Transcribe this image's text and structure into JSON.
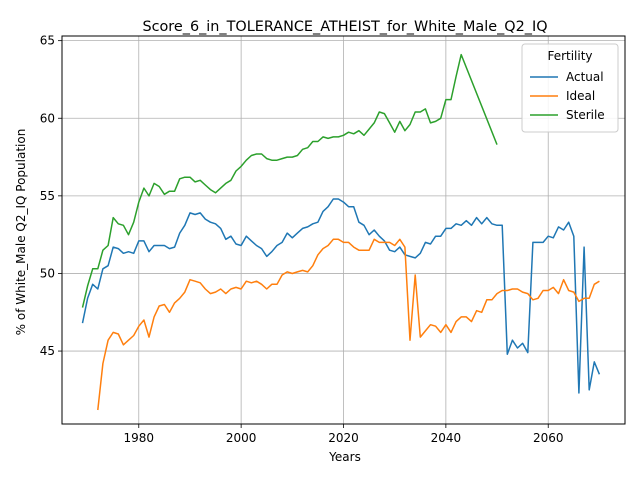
{
  "chart_data": {
    "type": "line",
    "title": "Score_6_in_TOLERANCE_ATHEIST_for_White_Male_Q2_IQ",
    "xlabel": "Years",
    "ylabel": "% of White_Male Q2_IQ Population",
    "xlim": [
      1965,
      2075
    ],
    "ylim": [
      40.3,
      65.3
    ],
    "xticks": [
      1980,
      2000,
      2020,
      2040,
      2060
    ],
    "yticks": [
      45,
      50,
      55,
      60,
      65
    ],
    "grid": true,
    "legend": {
      "title": "Fertility",
      "position": "top-right"
    },
    "series": [
      {
        "name": "Actual",
        "color": "#1f77b4",
        "x": [
          1969,
          1970,
          1971,
          1972,
          1973,
          1974,
          1975,
          1976,
          1977,
          1978,
          1979,
          1980,
          1981,
          1982,
          1983,
          1984,
          1985,
          1986,
          1987,
          1988,
          1989,
          1990,
          1991,
          1992,
          1993,
          1994,
          1995,
          1996,
          1997,
          1998,
          1999,
          2000,
          2001,
          2002,
          2003,
          2004,
          2005,
          2006,
          2007,
          2008,
          2009,
          2010,
          2011,
          2012,
          2013,
          2014,
          2015,
          2016,
          2017,
          2018,
          2019,
          2020,
          2021,
          2022,
          2023,
          2024,
          2025,
          2026,
          2027,
          2028,
          2029,
          2030,
          2031,
          2032,
          2033,
          2034,
          2035,
          2036,
          2037,
          2038,
          2039,
          2040,
          2041,
          2042,
          2043,
          2044,
          2045,
          2046,
          2047,
          2048,
          2049,
          2050,
          2051,
          2052,
          2053,
          2054,
          2055,
          2056,
          2057,
          2058,
          2059,
          2060,
          2061,
          2062,
          2063,
          2064,
          2065,
          2066,
          2067,
          2068,
          2069,
          2070
        ],
        "y": [
          46.8,
          48.4,
          49.3,
          49.0,
          50.3,
          50.5,
          51.7,
          51.6,
          51.3,
          51.4,
          51.3,
          52.1,
          52.1,
          51.4,
          51.8,
          51.8,
          51.8,
          51.6,
          51.7,
          52.6,
          53.1,
          53.9,
          53.8,
          53.9,
          53.5,
          53.3,
          53.2,
          52.9,
          52.2,
          52.4,
          51.9,
          51.8,
          52.4,
          52.1,
          51.8,
          51.6,
          51.1,
          51.4,
          51.8,
          52.0,
          52.6,
          52.3,
          52.6,
          52.9,
          53.0,
          53.2,
          53.3,
          54.0,
          54.3,
          54.8,
          54.8,
          54.6,
          54.3,
          54.3,
          53.3,
          53.1,
          52.5,
          52.8,
          52.4,
          52.1,
          51.5,
          51.4,
          51.7,
          51.2,
          51.1,
          51.0,
          51.3,
          52.0,
          51.9,
          52.4,
          52.4,
          52.9,
          52.9,
          53.2,
          53.1,
          53.4,
          53.1,
          53.6,
          53.2,
          53.6,
          53.2,
          53.1,
          53.1,
          44.8,
          45.7,
          45.2,
          45.5,
          44.9,
          52.0,
          52.0,
          52.0,
          52.4,
          52.3,
          53.0,
          52.8,
          53.3,
          52.4,
          42.3,
          51.7,
          42.5,
          44.3,
          43.5
        ]
      },
      {
        "name": "Ideal",
        "color": "#ff7f0e",
        "x": [
          1972,
          1973,
          1974,
          1975,
          1976,
          1977,
          1978,
          1979,
          1980,
          1981,
          1982,
          1983,
          1984,
          1985,
          1986,
          1987,
          1988,
          1989,
          1990,
          1991,
          1992,
          1993,
          1994,
          1995,
          1996,
          1997,
          1998,
          1999,
          2000,
          2001,
          2002,
          2003,
          2004,
          2005,
          2006,
          2007,
          2008,
          2009,
          2010,
          2011,
          2012,
          2013,
          2014,
          2015,
          2016,
          2017,
          2018,
          2019,
          2020,
          2021,
          2022,
          2023,
          2024,
          2025,
          2026,
          2027,
          2028,
          2029,
          2030,
          2031,
          2032,
          2033,
          2034,
          2035,
          2036,
          2037,
          2038,
          2039,
          2040,
          2041,
          2042,
          2043,
          2044,
          2045,
          2046,
          2047,
          2048,
          2049,
          2050,
          2051,
          2052,
          2053,
          2054,
          2055,
          2056,
          2057,
          2058,
          2059,
          2060,
          2061,
          2062,
          2063,
          2064,
          2065,
          2066,
          2067,
          2068,
          2069,
          2070
        ],
        "y": [
          41.2,
          44.2,
          45.7,
          46.2,
          46.1,
          45.4,
          45.7,
          46.0,
          46.6,
          47.0,
          45.9,
          47.2,
          47.9,
          48.0,
          47.5,
          48.1,
          48.4,
          48.8,
          49.6,
          49.5,
          49.4,
          49.0,
          48.7,
          48.8,
          49.0,
          48.7,
          49.0,
          49.1,
          49.0,
          49.5,
          49.4,
          49.5,
          49.3,
          49.0,
          49.3,
          49.3,
          49.9,
          50.1,
          50.0,
          50.1,
          50.2,
          50.1,
          50.5,
          51.2,
          51.6,
          51.8,
          52.2,
          52.2,
          52.0,
          52.0,
          51.7,
          51.5,
          51.5,
          51.5,
          52.2,
          52.0,
          52.0,
          52.0,
          51.8,
          52.2,
          51.7,
          45.7,
          49.9,
          45.9,
          46.3,
          46.7,
          46.6,
          46.2,
          46.7,
          46.2,
          46.9,
          47.2,
          47.2,
          46.9,
          47.6,
          47.5,
          48.3,
          48.3,
          48.7,
          48.9,
          48.9,
          49.0,
          49.0,
          48.8,
          48.7,
          48.3,
          48.4,
          48.9,
          48.9,
          49.1,
          48.7,
          49.6,
          48.9,
          48.8,
          48.2,
          48.4,
          48.4,
          49.3,
          49.5
        ]
      },
      {
        "name": "Sterile",
        "color": "#2ca02c",
        "x": [
          1969,
          1970,
          1971,
          1972,
          1973,
          1974,
          1975,
          1976,
          1977,
          1978,
          1979,
          1980,
          1981,
          1982,
          1983,
          1984,
          1985,
          1986,
          1987,
          1988,
          1989,
          1990,
          1991,
          1992,
          1993,
          1994,
          1995,
          1996,
          1997,
          1998,
          1999,
          2000,
          2001,
          2002,
          2003,
          2004,
          2005,
          2006,
          2007,
          2008,
          2009,
          2010,
          2011,
          2012,
          2013,
          2014,
          2015,
          2016,
          2017,
          2018,
          2019,
          2020,
          2021,
          2022,
          2023,
          2024,
          2025,
          2026,
          2027,
          2028,
          2029,
          2030,
          2031,
          2032,
          2033,
          2034,
          2035,
          2036,
          2037,
          2038,
          2039,
          2040,
          2041,
          2042,
          2043,
          2050
        ],
        "y": [
          47.8,
          49.2,
          50.3,
          50.3,
          51.5,
          51.8,
          53.6,
          53.2,
          53.1,
          52.5,
          53.3,
          54.6,
          55.5,
          55.0,
          55.8,
          55.6,
          55.1,
          55.3,
          55.3,
          56.1,
          56.2,
          56.2,
          55.9,
          56.0,
          55.7,
          55.4,
          55.2,
          55.5,
          55.8,
          56.0,
          56.6,
          56.9,
          57.3,
          57.6,
          57.7,
          57.7,
          57.4,
          57.3,
          57.3,
          57.4,
          57.5,
          57.5,
          57.6,
          58.0,
          58.1,
          58.5,
          58.5,
          58.8,
          58.7,
          58.8,
          58.8,
          58.9,
          59.1,
          59.0,
          59.2,
          58.9,
          59.3,
          59.7,
          60.4,
          60.3,
          59.7,
          59.1,
          59.8,
          59.2,
          59.6,
          60.4,
          60.4,
          60.6,
          59.7,
          59.8,
          60.0,
          61.2,
          61.2,
          62.7,
          64.1,
          58.3
        ]
      }
    ]
  }
}
